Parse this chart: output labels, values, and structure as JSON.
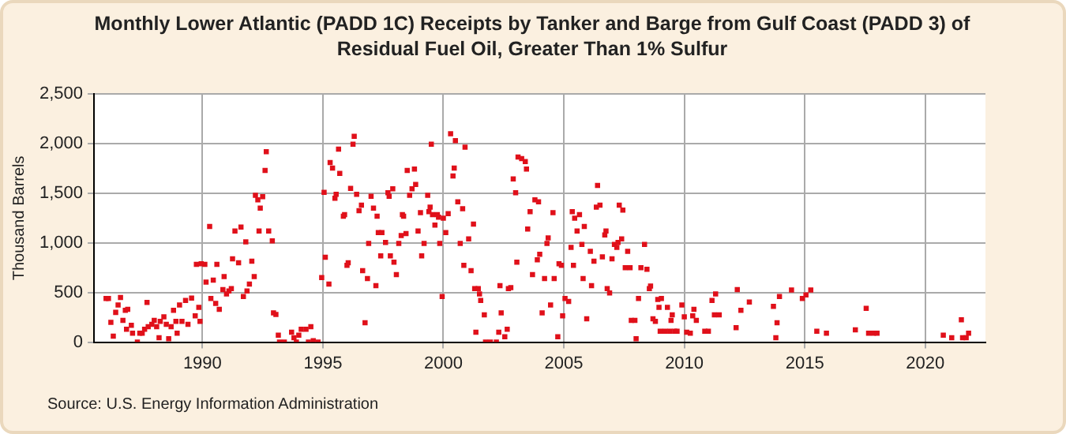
{
  "chart_data": {
    "type": "scatter",
    "title": "Monthly Lower Atlantic (PADD 1C) Receipts by Tanker and Barge from Gulf Coast (PADD 3) of Residual Fuel Oil, Greater Than 1% Sulfur",
    "ylabel": "Thousand Barrels",
    "annotations": [
      "Source: U.S. Energy Information Administration"
    ],
    "xlim": [
      1985.5,
      2022.5
    ],
    "xticks": [
      1990,
      1995,
      2000,
      2005,
      2010,
      2015,
      2020
    ],
    "ylim": [
      0,
      2500
    ],
    "yticks": [
      {
        "value": 0,
        "label": "0"
      },
      {
        "value": 500,
        "label": "500"
      },
      {
        "value": 1000,
        "label": "1,000"
      },
      {
        "value": 1500,
        "label": "1,500"
      },
      {
        "value": 2000,
        "label": "2,000"
      },
      {
        "value": 2500,
        "label": "2,500"
      }
    ],
    "grid": true,
    "legend": false,
    "marker": "square",
    "series": [
      {
        "color": "#e0101a",
        "x": [
          1986.0,
          1986.1,
          1986.2,
          1986.3,
          1986.4,
          1986.5,
          1986.6,
          1986.7,
          1986.8,
          1986.85,
          1986.9,
          1987.05,
          1987.1,
          1987.3,
          1987.4,
          1987.5,
          1987.6,
          1987.7,
          1987.75,
          1987.9,
          1988.0,
          1988.1,
          1988.2,
          1988.25,
          1988.4,
          1988.5,
          1988.6,
          1988.7,
          1988.8,
          1988.9,
          1988.95,
          1989.05,
          1989.15,
          1989.3,
          1989.4,
          1989.55,
          1989.7,
          1989.75,
          1989.85,
          1989.9,
          1989.95,
          1990.1,
          1990.15,
          1990.3,
          1990.35,
          1990.45,
          1990.55,
          1990.6,
          1990.7,
          1990.85,
          1990.9,
          1991.0,
          1991.1,
          1991.2,
          1991.25,
          1991.35,
          1991.5,
          1991.6,
          1991.7,
          1991.8,
          1991.85,
          1991.95,
          1992.05,
          1992.15,
          1992.2,
          1992.3,
          1992.35,
          1992.4,
          1992.5,
          1992.6,
          1992.65,
          1992.75,
          1992.9,
          1992.95,
          1993.05,
          1993.15,
          1993.2,
          1993.4,
          1993.7,
          1993.8,
          1993.9,
          1994.0,
          1994.1,
          1994.3,
          1994.4,
          1994.5,
          1994.6,
          1994.8,
          1994.95,
          1995.05,
          1995.1,
          1995.25,
          1995.3,
          1995.4,
          1995.5,
          1995.55,
          1995.65,
          1995.7,
          1995.85,
          1995.9,
          1996.0,
          1996.05,
          1996.15,
          1996.25,
          1996.3,
          1996.4,
          1996.5,
          1996.6,
          1996.65,
          1996.75,
          1996.85,
          1996.9,
          1997.0,
          1997.1,
          1997.2,
          1997.25,
          1997.3,
          1997.4,
          1997.45,
          1997.6,
          1997.7,
          1997.75,
          1997.8,
          1997.9,
          1997.95,
          1998.05,
          1998.15,
          1998.25,
          1998.3,
          1998.35,
          1998.45,
          1998.5,
          1998.6,
          1998.7,
          1998.8,
          1998.85,
          1998.95,
          1999.05,
          1999.1,
          1999.2,
          1999.35,
          1999.4,
          1999.45,
          1999.5,
          1999.55,
          1999.65,
          1999.75,
          1999.8,
          1999.85,
          1999.95,
          2000.0,
          2000.1,
          2000.2,
          2000.3,
          2000.4,
          2000.45,
          2000.5,
          2000.6,
          2000.7,
          2000.8,
          2000.85,
          2000.9,
          2001.05,
          2001.15,
          2001.25,
          2001.3,
          2001.35,
          2001.45,
          2001.5,
          2001.55,
          2001.7,
          2001.75,
          2001.95,
          2002.2,
          2002.3,
          2002.35,
          2002.4,
          2002.55,
          2002.65,
          2002.7,
          2002.8,
          2002.9,
          2003.0,
          2003.05,
          2003.1,
          2003.25,
          2003.4,
          2003.45,
          2003.5,
          2003.6,
          2003.7,
          2003.8,
          2003.9,
          2003.95,
          2004.0,
          2004.1,
          2004.2,
          2004.3,
          2004.35,
          2004.45,
          2004.55,
          2004.6,
          2004.75,
          2004.8,
          2004.9,
          2004.95,
          2005.05,
          2005.2,
          2005.3,
          2005.35,
          2005.4,
          2005.45,
          2005.55,
          2005.65,
          2005.75,
          2005.8,
          2005.85,
          2005.95,
          2006.1,
          2006.15,
          2006.25,
          2006.35,
          2006.4,
          2006.5,
          2006.6,
          2006.7,
          2006.75,
          2006.8,
          2006.9,
          2007.0,
          2007.1,
          2007.2,
          2007.25,
          2007.3,
          2007.4,
          2007.45,
          2007.55,
          2007.65,
          2007.75,
          2007.8,
          2007.95,
          2008.0,
          2008.1,
          2008.2,
          2008.35,
          2008.45,
          2008.55,
          2008.6,
          2008.7,
          2008.8,
          2008.9,
          2008.95,
          2009.0,
          2009.05,
          2009.2,
          2009.3,
          2009.4,
          2009.45,
          2009.5,
          2009.6,
          2009.7,
          2009.9,
          2010.0,
          2010.1,
          2010.25,
          2010.35,
          2010.4,
          2010.5,
          2010.85,
          2011.0,
          2011.15,
          2011.25,
          2011.3,
          2011.45,
          2012.15,
          2012.2,
          2012.35,
          2012.7,
          2013.7,
          2013.8,
          2013.85,
          2013.95,
          2014.45,
          2014.9,
          2015.05,
          2015.25,
          2015.5,
          2015.9,
          2017.1,
          2017.55,
          2017.65,
          2017.85,
          2018.0,
          2020.75,
          2021.1,
          2021.5,
          2021.55,
          2021.7,
          2021.8
        ],
        "values": [
          440,
          440,
          200,
          60,
          300,
          375,
          450,
          220,
          320,
          130,
          330,
          170,
          90,
          0,
          90,
          90,
          130,
          400,
          155,
          180,
          220,
          155,
          45,
          210,
          255,
          180,
          35,
          155,
          320,
          210,
          90,
          375,
          210,
          420,
          180,
          445,
          265,
          785,
          350,
          210,
          790,
          785,
          605,
          1165,
          440,
          625,
          390,
          785,
          330,
          530,
          660,
          485,
          515,
          540,
          840,
          1120,
          800,
          1160,
          460,
          1010,
          515,
          585,
          815,
          660,
          1480,
          1435,
          1120,
          1350,
          1465,
          1730,
          1920,
          1120,
          1020,
          295,
          280,
          70,
          0,
          0,
          100,
          45,
          0,
          70,
          130,
          130,
          0,
          155,
          15,
          0,
          650,
          1510,
          855,
          585,
          1810,
          1755,
          1450,
          1490,
          1945,
          1700,
          1270,
          1285,
          775,
          800,
          1550,
          1995,
          2075,
          1490,
          1325,
          1380,
          720,
          195,
          640,
          995,
          1470,
          1350,
          570,
          1270,
          1105,
          870,
          1105,
          1005,
          1505,
          1470,
          870,
          1545,
          805,
          680,
          995,
          1075,
          1285,
          1270,
          1095,
          1730,
          1480,
          1545,
          1745,
          1590,
          1120,
          1305,
          870,
          995,
          1480,
          1315,
          1360,
          1995,
          1285,
          1180,
          1285,
          1260,
          995,
          460,
          1250,
          1105,
          1295,
          2100,
          1675,
          1755,
          2030,
          1415,
          995,
          1345,
          775,
          1965,
          1040,
          720,
          1190,
          540,
          100,
          540,
          485,
          420,
          275,
          0,
          0,
          0,
          100,
          570,
          295,
          55,
          130,
          540,
          550,
          1645,
          1505,
          805,
          1865,
          1850,
          1820,
          1745,
          1140,
          1315,
          680,
          1435,
          830,
          1415,
          885,
          295,
          640,
          995,
          1050,
          375,
          1305,
          640,
          55,
          790,
          775,
          265,
          440,
          410,
          955,
          1315,
          775,
          1250,
          1120,
          1285,
          985,
          640,
          1165,
          235,
          915,
          570,
          815,
          1360,
          1580,
          1380,
          860,
          1080,
          1120,
          540,
          495,
          840,
          985,
          955,
          1005,
          1380,
          1040,
          1330,
          750,
          915,
          750,
          220,
          220,
          35,
          440,
          750,
          985,
          735,
          540,
          565,
          235,
          210,
          430,
          350,
          110,
          440,
          110,
          350,
          110,
          220,
          275,
          110,
          110,
          375,
          255,
          100,
          90,
          265,
          330,
          220,
          110,
          110,
          420,
          275,
          485,
          275,
          145,
          530,
          320,
          405,
          360,
          45,
          195,
          460,
          525,
          440,
          475,
          525,
          110,
          90,
          125,
          340,
          90,
          90,
          90,
          70,
          45,
          225,
          45,
          45,
          90
        ]
      }
    ]
  }
}
